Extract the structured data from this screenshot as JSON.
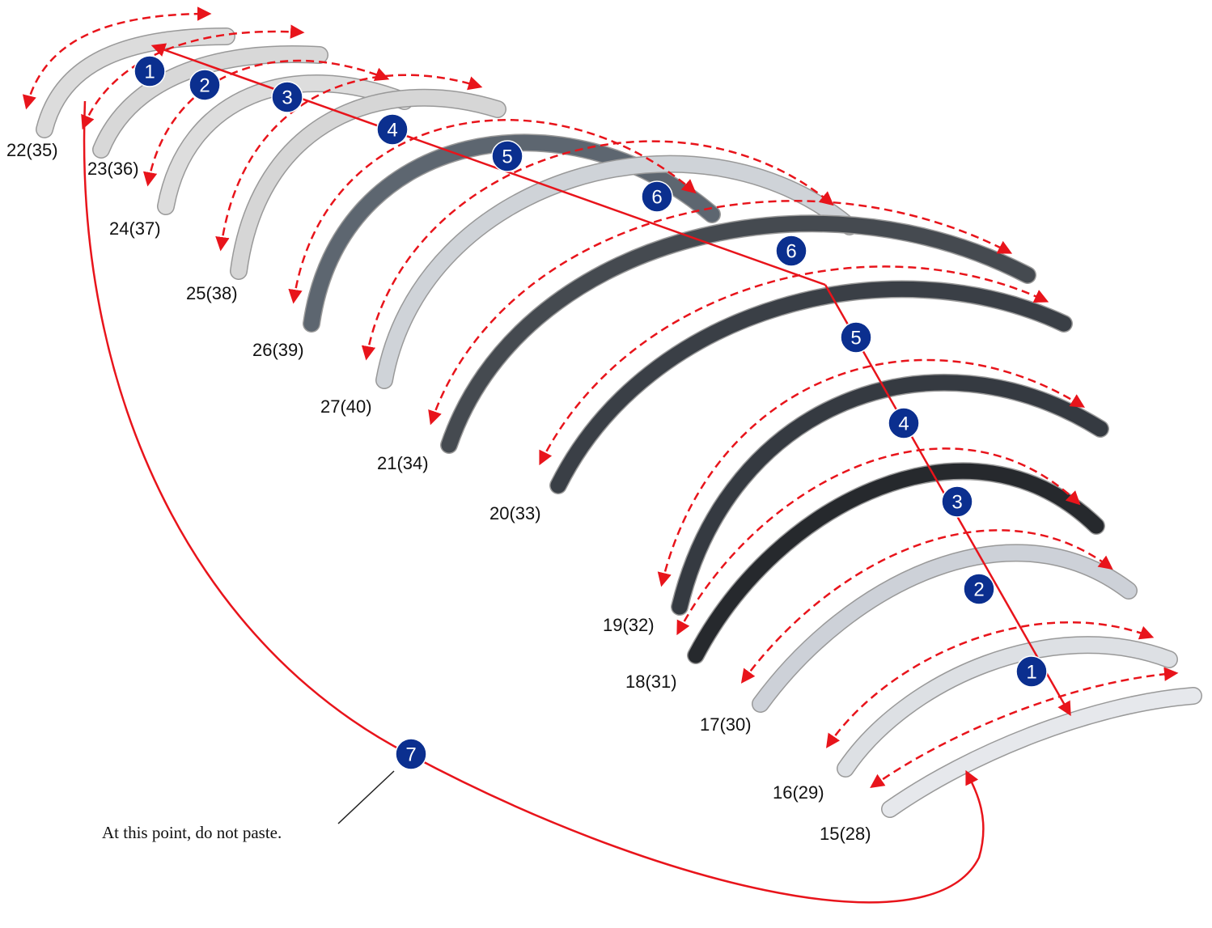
{
  "pieces": [
    "22(35)",
    "23(36)",
    "24(37)",
    "25(38)",
    "26(39)",
    "27(40)",
    "21(34)",
    "20(33)",
    "19(32)",
    "18(31)",
    "17(30)",
    "16(29)",
    "15(28)"
  ],
  "steps_upper": [
    "1",
    "2",
    "3",
    "4",
    "5",
    "6"
  ],
  "steps_lower": [
    "6",
    "5",
    "4",
    "3",
    "2",
    "1"
  ],
  "step_final": "7",
  "note": "At this point, do not paste."
}
